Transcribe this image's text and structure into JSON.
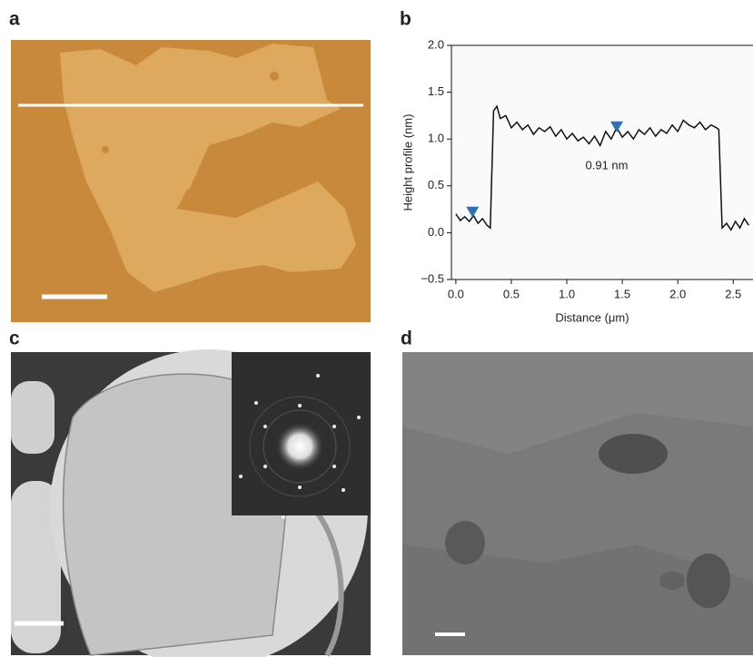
{
  "panel_labels": [
    "a",
    "b",
    "c",
    "d"
  ],
  "chart_data": {
    "type": "line",
    "xlabel": "Distance (μm)",
    "ylabel": "Height profile (nm)",
    "annotation": "0.91 nm",
    "xlim": [
      -0.04,
      2.67
    ],
    "ylim": [
      -0.5,
      2.0
    ],
    "xticks": [
      {
        "value": 0,
        "label": "0.0"
      },
      0.5,
      {
        "value": 1,
        "label": "1.0"
      },
      1.5,
      {
        "value": 2,
        "label": "2.0"
      },
      2.5
    ],
    "yticks": [
      {
        "value": -0.5,
        "label": "−0.5"
      },
      {
        "value": 0,
        "label": "0.0"
      },
      0.5,
      {
        "value": 1,
        "label": "1.0"
      },
      1.5,
      {
        "value": 2,
        "label": "2.0"
      }
    ],
    "series": [
      {
        "color": "#111111",
        "style": "line",
        "x": [
          0,
          0.04,
          0.08,
          0.12,
          0.16,
          0.2,
          0.24,
          0.28,
          0.31,
          0.34,
          0.37,
          0.4,
          0.45,
          0.5,
          0.55,
          0.6,
          0.65,
          0.7,
          0.75,
          0.8,
          0.85,
          0.9,
          0.95,
          1.0,
          1.05,
          1.1,
          1.15,
          1.2,
          1.25,
          1.3,
          1.35,
          1.4,
          1.45,
          1.5,
          1.55,
          1.6,
          1.65,
          1.7,
          1.75,
          1.8,
          1.85,
          1.9,
          1.95,
          2.0,
          2.05,
          2.1,
          2.15,
          2.2,
          2.25,
          2.3,
          2.35,
          2.37,
          2.4,
          2.44,
          2.48,
          2.52,
          2.56,
          2.6,
          2.64
        ],
        "values": [
          0.2,
          0.13,
          0.17,
          0.12,
          0.18,
          0.1,
          0.15,
          0.08,
          0.05,
          1.3,
          1.35,
          1.22,
          1.25,
          1.12,
          1.18,
          1.1,
          1.15,
          1.05,
          1.12,
          1.08,
          1.13,
          1.03,
          1.1,
          1.0,
          1.06,
          0.98,
          1.02,
          0.95,
          1.03,
          0.93,
          1.08,
          1.0,
          1.12,
          1.02,
          1.08,
          1.0,
          1.1,
          1.05,
          1.12,
          1.03,
          1.1,
          1.06,
          1.15,
          1.08,
          1.2,
          1.15,
          1.12,
          1.18,
          1.1,
          1.15,
          1.12,
          1.1,
          0.05,
          0.1,
          0.03,
          0.12,
          0.05,
          0.15,
          0.08
        ]
      },
      {
        "color": "#2e6fb5",
        "style": "triangle",
        "x": [
          0.15,
          1.45
        ],
        "values": [
          0.22,
          1.13
        ]
      }
    ]
  }
}
